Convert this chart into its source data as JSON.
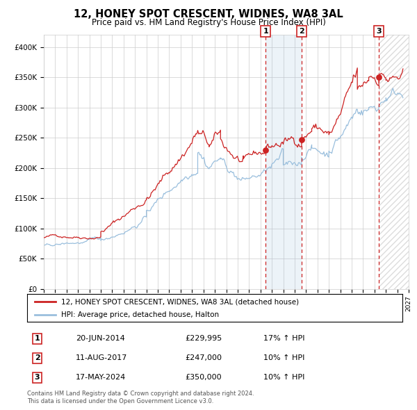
{
  "title": "12, HONEY SPOT CRESCENT, WIDNES, WA8 3AL",
  "subtitle": "Price paid vs. HM Land Registry's House Price Index (HPI)",
  "legend_line1": "12, HONEY SPOT CRESCENT, WIDNES, WA8 3AL (detached house)",
  "legend_line2": "HPI: Average price, detached house, Halton",
  "sale1_date": "20-JUN-2014",
  "sale1_price": 229995,
  "sale1_hpi": "17% ↑ HPI",
  "sale2_date": "11-AUG-2017",
  "sale2_price": 247000,
  "sale2_hpi": "10% ↑ HPI",
  "sale3_date": "17-MAY-2024",
  "sale3_price": 350000,
  "sale3_hpi": "10% ↑ HPI",
  "footnote1": "Contains HM Land Registry data © Crown copyright and database right 2024.",
  "footnote2": "This data is licensed under the Open Government Licence v3.0.",
  "red_color": "#cc2222",
  "blue_color": "#9abfdd",
  "background_color": "#ffffff",
  "grid_color": "#cccccc",
  "sale1_year": 2014.47,
  "sale2_year": 2017.61,
  "sale3_year": 2024.38,
  "xmin": 1995,
  "xmax": 2027,
  "ymin": 0,
  "ymax": 420000,
  "yticks": [
    0,
    50000,
    100000,
    150000,
    200000,
    250000,
    300000,
    350000,
    400000
  ],
  "ylabels": [
    "£0",
    "£50K",
    "£100K",
    "£150K",
    "£200K",
    "£250K",
    "£300K",
    "£350K",
    "£400K"
  ]
}
